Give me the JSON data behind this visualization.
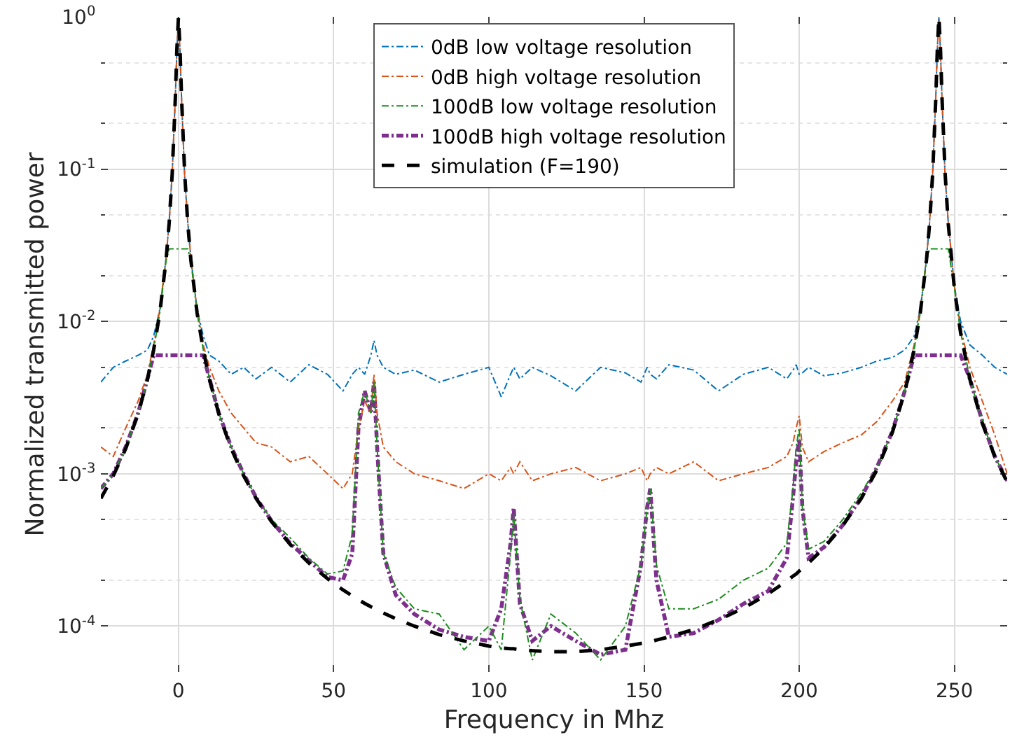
{
  "chart_data": {
    "type": "line",
    "xlabel": "Frequency in Mhz",
    "ylabel": "Normalized transmitted power",
    "log": "y",
    "grid": true,
    "legend": "top",
    "xlim": [
      -25,
      267
    ],
    "xticks": [
      0,
      50,
      100,
      150,
      200,
      250
    ],
    "ylim": [
      5e-05,
      1
    ],
    "yticks": [
      {
        "value": 0.0001,
        "label": "10$^{-4}$"
      },
      {
        "value": 0.001,
        "label": "10$^{-3}$"
      },
      {
        "value": 0.01,
        "label": "10$^{-2}$"
      },
      {
        "value": 0.1,
        "label": "10$^{-1}$"
      },
      {
        "value": 1,
        "label": "10$^{0}$"
      }
    ],
    "x": [
      -25,
      -21,
      -17,
      -13,
      -10,
      -8,
      -6,
      -4,
      -3,
      -2,
      -1,
      -0.5,
      0,
      0.5,
      1,
      2,
      3,
      4,
      6,
      8,
      10,
      13,
      17,
      21,
      25,
      30,
      36,
      42,
      48,
      53,
      56,
      58,
      60,
      62,
      63,
      64,
      66,
      70,
      76,
      84,
      92,
      100,
      104,
      107,
      108,
      110,
      114,
      120,
      128,
      136,
      144,
      149,
      151,
      152,
      154,
      158,
      166,
      174,
      182,
      190,
      196,
      198,
      199,
      200,
      201,
      203,
      208,
      214,
      220,
      225,
      230,
      234,
      237,
      239,
      241,
      242,
      243,
      244,
      244.5,
      245,
      245.5,
      246,
      247,
      248,
      250,
      252,
      255,
      259,
      263,
      267
    ],
    "series": [
      {
        "name": "0dB low voltage resolution",
        "color": "#0072bd",
        "line_style": "dashdot",
        "values": [
          0.004,
          0.005,
          0.0055,
          0.006,
          0.0065,
          0.008,
          0.012,
          0.026,
          0.045,
          0.095,
          0.3,
          0.62,
          1,
          0.6,
          0.29,
          0.09,
          0.045,
          0.026,
          0.012,
          0.008,
          0.006,
          0.0055,
          0.0045,
          0.005,
          0.0042,
          0.005,
          0.004,
          0.0052,
          0.0045,
          0.0035,
          0.0045,
          0.005,
          0.0045,
          0.006,
          0.0075,
          0.006,
          0.005,
          0.0045,
          0.0048,
          0.004,
          0.0045,
          0.005,
          0.0032,
          0.0045,
          0.005,
          0.0042,
          0.005,
          0.0044,
          0.0035,
          0.005,
          0.0046,
          0.004,
          0.005,
          0.0045,
          0.0042,
          0.0052,
          0.0048,
          0.0035,
          0.0045,
          0.005,
          0.0042,
          0.0048,
          0.0052,
          0.0045,
          0.0046,
          0.005,
          0.0044,
          0.0046,
          0.005,
          0.0055,
          0.0058,
          0.0065,
          0.008,
          0.012,
          0.026,
          0.045,
          0.095,
          0.3,
          0.62,
          1,
          0.6,
          0.29,
          0.09,
          0.045,
          0.017,
          0.01,
          0.007,
          0.006,
          0.005,
          0.0045
        ]
      },
      {
        "name": "0dB high voltage resolution",
        "color": "#d95319",
        "line_style": "dashdot",
        "values": [
          0.0015,
          0.0013,
          0.002,
          0.003,
          0.0045,
          0.007,
          0.012,
          0.026,
          0.045,
          0.095,
          0.3,
          0.62,
          1,
          0.6,
          0.29,
          0.09,
          0.045,
          0.026,
          0.012,
          0.007,
          0.005,
          0.0035,
          0.0025,
          0.002,
          0.0016,
          0.0015,
          0.0012,
          0.0013,
          0.001,
          0.0008,
          0.001,
          0.002,
          0.003,
          0.0025,
          0.0045,
          0.0025,
          0.0015,
          0.0012,
          0.001,
          0.0009,
          0.0008,
          0.001,
          0.0009,
          0.0011,
          0.001,
          0.0012,
          0.0009,
          0.001,
          0.0011,
          0.0009,
          0.001,
          0.0011,
          0.0009,
          0.001,
          0.0011,
          0.001,
          0.0012,
          0.0009,
          0.001,
          0.0011,
          0.0013,
          0.0016,
          0.002,
          0.0024,
          0.0015,
          0.0012,
          0.0014,
          0.0016,
          0.0018,
          0.0022,
          0.003,
          0.004,
          0.007,
          0.012,
          0.026,
          0.045,
          0.095,
          0.3,
          0.62,
          1,
          0.6,
          0.29,
          0.09,
          0.045,
          0.017,
          0.009,
          0.005,
          0.003,
          0.0018,
          0.001
        ]
      },
      {
        "name": "100dB low voltage resolution",
        "color": "#1e8c1e",
        "line_style": "dashdot",
        "values": [
          0.0008,
          0.001,
          0.0015,
          0.0025,
          0.0042,
          0.0065,
          0.0115,
          0.025,
          0.03,
          0.03,
          0.03,
          0.03,
          0.03,
          0.03,
          0.03,
          0.03,
          0.03,
          0.025,
          0.0115,
          0.0065,
          0.0042,
          0.0025,
          0.0015,
          0.001,
          0.0007,
          0.0005,
          0.00038,
          0.00028,
          0.00022,
          0.00023,
          0.0004,
          0.0025,
          0.0035,
          0.0025,
          0.004,
          0.0015,
          0.0003,
          0.00018,
          0.00013,
          0.00012,
          7e-05,
          0.0001,
          7e-05,
          0.0003,
          0.00055,
          0.00015,
          6e-05,
          0.00012,
          9e-05,
          6e-05,
          0.0001,
          0.00025,
          0.0006,
          0.0008,
          0.00025,
          0.00013,
          0.00013,
          0.00015,
          0.0002,
          0.00024,
          0.00035,
          0.0008,
          0.0015,
          0.002,
          0.0006,
          0.00032,
          0.00036,
          0.0005,
          0.00075,
          0.0011,
          0.0019,
          0.0035,
          0.0065,
          0.0115,
          0.025,
          0.03,
          0.03,
          0.03,
          0.03,
          0.03,
          0.03,
          0.03,
          0.03,
          0.03,
          0.0165,
          0.0085,
          0.0042,
          0.0022,
          0.0013,
          0.0009
        ]
      },
      {
        "name": "100dB high voltage resolution",
        "color": "#7e2f8e",
        "line_style": "dashdot",
        "values": [
          0.0008,
          0.001,
          0.0015,
          0.0025,
          0.0042,
          0.006,
          0.006,
          0.006,
          0.006,
          0.006,
          0.006,
          0.006,
          0.006,
          0.006,
          0.006,
          0.006,
          0.006,
          0.006,
          0.006,
          0.006,
          0.0042,
          0.0025,
          0.0015,
          0.001,
          0.0007,
          0.00049,
          0.00035,
          0.00027,
          0.00021,
          0.0002,
          0.0003,
          0.002,
          0.0035,
          0.0025,
          0.004,
          0.0015,
          0.0003,
          0.00016,
          0.00012,
          9.5e-05,
          8.5e-05,
          8e-05,
          0.00013,
          0.00035,
          0.0006,
          0.00014,
          8e-05,
          0.0001,
          8e-05,
          6.5e-05,
          7e-05,
          0.00025,
          0.0006,
          0.0008,
          0.0002,
          8.5e-05,
          9e-05,
          0.00011,
          0.00014,
          0.00017,
          0.00028,
          0.0007,
          0.0012,
          0.0017,
          0.0006,
          0.00028,
          0.00033,
          0.00046,
          0.0007,
          0.0011,
          0.0019,
          0.0035,
          0.006,
          0.006,
          0.006,
          0.006,
          0.006,
          0.006,
          0.006,
          0.006,
          0.006,
          0.006,
          0.006,
          0.006,
          0.006,
          0.006,
          0.0042,
          0.0022,
          0.0013,
          0.0009
        ]
      },
      {
        "name": "simulation (F=190)",
        "color": "#000000",
        "line_style": "dashed",
        "values": [
          0.00069,
          0.00097,
          0.00146,
          0.00248,
          0.00416,
          0.0065,
          0.0114,
          0.0253,
          0.0441,
          0.094,
          0.294,
          0.62,
          1,
          0.62,
          0.294,
          0.094,
          0.0441,
          0.0253,
          0.0114,
          0.0065,
          0.00416,
          0.00248,
          0.00146,
          0.00097,
          0.00069,
          0.000485,
          0.000344,
          0.00026,
          0.000205,
          0.000173,
          0.000158,
          0.000149,
          0.000141,
          0.000134,
          0.000131,
          0.000128,
          0.000122,
          0.000112,
          0.0001,
          8.8e-05,
          8e-05,
          7.4e-05,
          7.2e-05,
          7.1e-05,
          7.1e-05,
          7e-05,
          6.9e-05,
          6.8e-05,
          6.8e-05,
          7e-05,
          7.4e-05,
          7.7e-05,
          7.8e-05,
          7.9e-05,
          8.1e-05,
          8.5e-05,
          9.5e-05,
          0.00011,
          0.000131,
          0.000163,
          0.000198,
          0.000213,
          0.00022,
          0.00023,
          0.00024,
          0.00026,
          0.000327,
          0.000456,
          0.00069,
          0.00106,
          0.00187,
          0.00345,
          0.0065,
          0.0114,
          0.0253,
          0.0441,
          0.094,
          0.294,
          0.62,
          1,
          0.62,
          0.294,
          0.094,
          0.0441,
          0.0164,
          0.0084,
          0.00416,
          0.00214,
          0.0013,
          0.00088
        ]
      }
    ]
  }
}
